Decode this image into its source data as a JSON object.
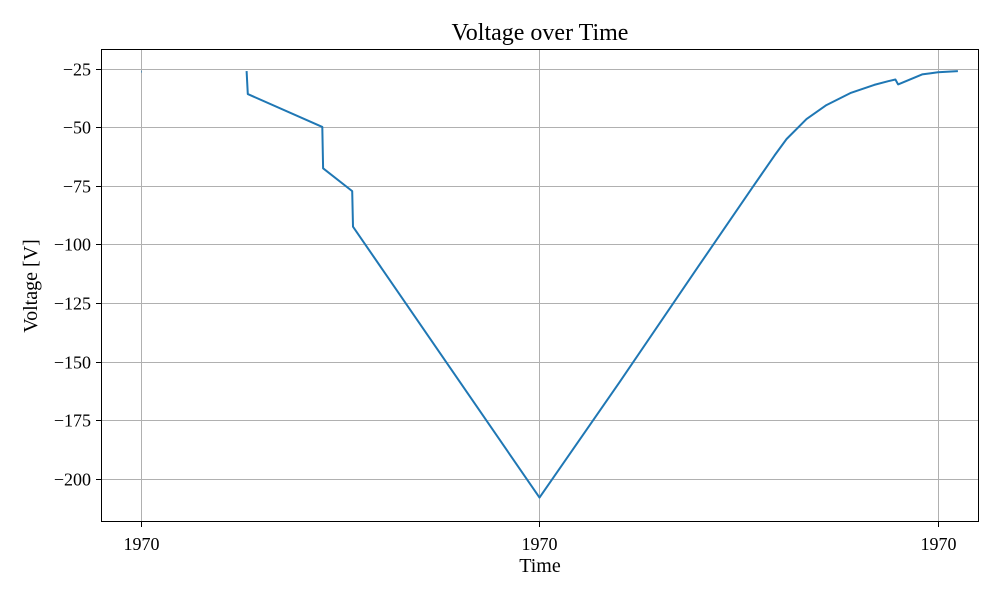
{
  "chart_data": {
    "type": "line",
    "title": "Voltage over Time",
    "xlabel": "Time",
    "ylabel": "Voltage [V]",
    "x_ticks": [
      "1970",
      "1970",
      "1970"
    ],
    "y_ticks": [
      -25,
      -50,
      -75,
      -100,
      -125,
      -150,
      -175,
      -200
    ],
    "y_tick_labels": [
      "−25",
      "−50",
      "−75",
      "−100",
      "−125",
      "−150",
      "−175",
      "−200"
    ],
    "ylim": [
      -218,
      -17
    ],
    "grid": true,
    "color": "#1f77b4",
    "series": [
      {
        "segments": [
          [
            [
              0.0,
              -26.2
            ],
            [
              0.0015,
              -26.2
            ]
          ],
          [
            [
              0.265,
              -26.0
            ],
            [
              0.268,
              -35.8
            ],
            [
              0.455,
              -49.8
            ],
            [
              0.457,
              -67.5
            ],
            [
              0.53,
              -77.2
            ],
            [
              0.532,
              -92.4
            ],
            [
              1.0,
              -208.0
            ],
            [
              1.2,
              -159.0
            ],
            [
              1.4,
              -109.0
            ],
            [
              1.535,
              -75.5
            ],
            [
              1.59,
              -62.0
            ],
            [
              1.62,
              -55.0
            ],
            [
              1.67,
              -46.5
            ],
            [
              1.72,
              -40.5
            ],
            [
              1.78,
              -35.4
            ],
            [
              1.84,
              -31.9
            ],
            [
              1.875,
              -30.3
            ],
            [
              1.893,
              -29.6
            ],
            [
              1.9,
              -31.7
            ],
            [
              1.96,
              -27.4
            ],
            [
              1.98,
              -27.0
            ],
            [
              2.0,
              -26.5
            ],
            [
              2.05,
              -26.0
            ]
          ]
        ]
      }
    ]
  }
}
